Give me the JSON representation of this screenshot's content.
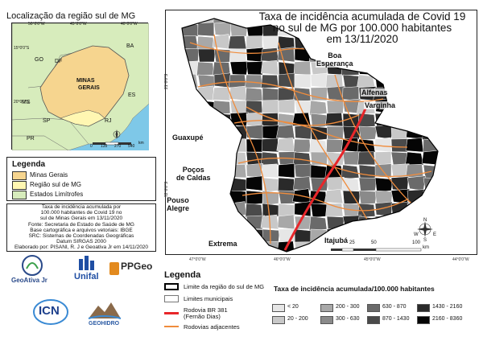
{
  "inset": {
    "title": "Localização da região sul de MG",
    "coords_top": [
      "50°0'0\"W",
      "45°0'0\"W",
      "40°0'0\"W"
    ],
    "coords_left": [
      "15°0'0\"S",
      "20°0'0\"S"
    ],
    "states": [
      "BA",
      "GO",
      "DF",
      "ES",
      "MS",
      "SP",
      "RJ",
      "PR"
    ],
    "mg_label": [
      "MINAS",
      "GERAIS"
    ],
    "scale": [
      "0",
      "135",
      "270",
      "540"
    ],
    "scale_unit": "km"
  },
  "legend_left": {
    "title": "Legenda",
    "items": [
      {
        "label": "Minas Gerais",
        "color": "#f6d58f"
      },
      {
        "label": "Região sul de MG",
        "color": "#fff7b2"
      },
      {
        "label": "Estados Limítrofes",
        "color": "#d7ecbc"
      }
    ]
  },
  "credits": [
    "Taxa de incidência acumulada por",
    "100.000 habitantes de Covid 19 no",
    "sul de Minas Gerais em 13/11/2020",
    "Fonte: Secretaria de Estado de Saúde de MG",
    "Base cartográfica e arquivos vetoriais: IBGE",
    "SRC: Sistemas de Coordenadas Geográficas",
    "Datum SIRGAS 2000",
    "Elaborado por: PISANI, R. J e Geoativa Jr em 14/11/2020"
  ],
  "logos": {
    "geoativa": "GeoAtiva Jr",
    "unifal": "Unifal",
    "ppgeo": "PPGeo",
    "icn": "ICN",
    "geohidro": "GEOHIDRO"
  },
  "main": {
    "title": [
      "Taxa de incidência acumulada de Covid 19",
      "no sul de MG por 100.000 habitantes",
      "em 13/11/2020"
    ],
    "cities": [
      {
        "name": "Boa",
        "name2": "Esperança"
      },
      {
        "name": "Alfenas"
      },
      {
        "name": "Varginha"
      },
      {
        "name": "Guaxupé"
      },
      {
        "name": "Poços",
        "name2": "de Caldas"
      },
      {
        "name": "Pouso",
        "name2": "Alegre"
      },
      {
        "name": "Extrema"
      },
      {
        "name": "Itajubá"
      }
    ],
    "coords_bottom": [
      "47°0'0\"W",
      "46°0'0\"W",
      "45°0'0\"W",
      "44°0'0\"W"
    ],
    "coords_left": [
      "21°0'0\"S",
      "22°0'0\"S"
    ],
    "scale": [
      "0",
      "25",
      "50",
      "100"
    ],
    "scale_unit": "km",
    "compass": {
      "n": "N",
      "s": "S",
      "e": "E",
      "w": "W"
    }
  },
  "legend_bottom": {
    "title": "Legenda",
    "items": [
      {
        "label": "Limite da região do sul de MG"
      },
      {
        "label": "Limites municipais"
      },
      {
        "label": "Rodovia BR 381",
        "label2": "(Fernão Dias)",
        "color": "#e8262a"
      },
      {
        "label": "Rodovias adjacentes",
        "color": "#f08c3c"
      }
    ]
  },
  "classes": {
    "title": "Taxa de incidência acumulada/100.000 habitantes",
    "items": [
      {
        "label": "< 20",
        "color": "#e6e6e6"
      },
      {
        "label": "20 - 200",
        "color": "#c8c8c8"
      },
      {
        "label": "200 - 300",
        "color": "#a8a8a8"
      },
      {
        "label": "300 - 630",
        "color": "#8a8a8a"
      },
      {
        "label": "630 - 870",
        "color": "#6a6a6a"
      },
      {
        "label": "870 - 1430",
        "color": "#4a4a4a"
      },
      {
        "label": "1430 - 2160",
        "color": "#2a2a2a"
      },
      {
        "label": "2160 - 8360",
        "color": "#050505"
      }
    ]
  }
}
